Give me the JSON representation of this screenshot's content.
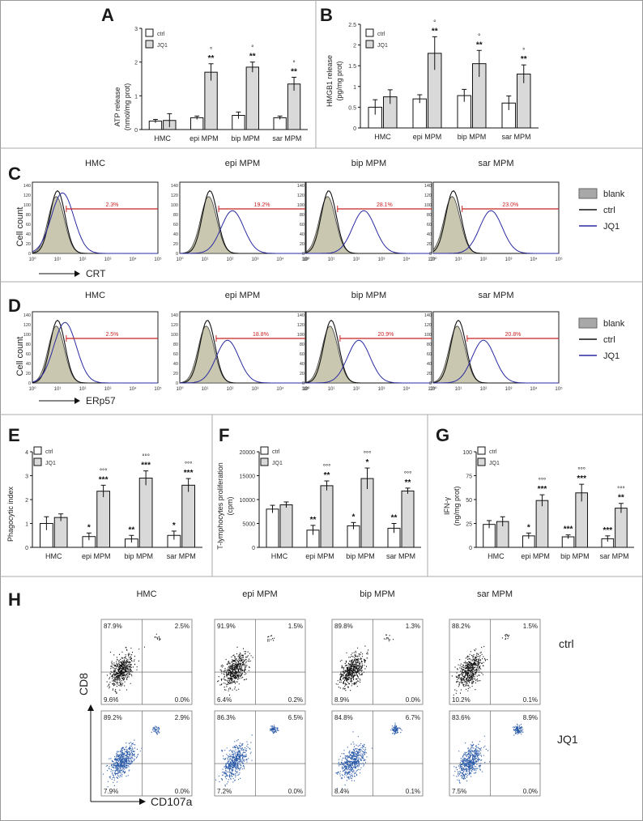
{
  "panels": {
    "A": {
      "letter": "A",
      "ylabel": "ATP release",
      "yunit": "(nmol/mg prot)"
    },
    "B": {
      "letter": "B",
      "ylabel": "HMGB1 release",
      "yunit": "(pg/mg prot)"
    },
    "C": {
      "letter": "C",
      "ylabel": "Cell count",
      "marker": "CRT"
    },
    "D": {
      "letter": "D",
      "ylabel": "Cell count",
      "marker": "ERp57"
    },
    "E": {
      "letter": "E",
      "ylabel": "Phagocytic index"
    },
    "F": {
      "letter": "F",
      "ylabel": "T-lymphocytes proliferation",
      "yunit": "(cpm)"
    },
    "G": {
      "letter": "G",
      "ylabel": "IFN-γ",
      "yunit": "(ng/mg prot)"
    },
    "H": {
      "letter": "H",
      "yaxis": "CD8",
      "xaxis": "CD107a",
      "row_labels": [
        "ctrl",
        "JQ1"
      ]
    }
  },
  "legend": {
    "ctrl": "ctrl",
    "jq1": "JQ1",
    "blank": "blank"
  },
  "categories": [
    "HMC",
    "epi MPM",
    "bip MPM",
    "sar MPM"
  ],
  "colors": {
    "ctrl_bar": "#ffffff",
    "jq1_bar": "#d9d9d9",
    "hist_fill": "#c9c7b0",
    "jq1_line": "#2a2aa0",
    "gate": "#cc2222",
    "flow_ctrl": "#111111",
    "flow_jq1": "#2a5aa8"
  },
  "chart_data": [
    {
      "id": "A",
      "type": "bar",
      "categories": [
        "HMC",
        "epi MPM",
        "bip MPM",
        "sar MPM"
      ],
      "ylim": [
        0,
        3
      ],
      "yticks": [
        0,
        1,
        2,
        3
      ],
      "series": [
        {
          "name": "ctrl",
          "values": [
            0.25,
            0.35,
            0.42,
            0.35
          ],
          "err": [
            0.05,
            0.05,
            0.1,
            0.05
          ],
          "sig": [
            "",
            "",
            "",
            ""
          ]
        },
        {
          "name": "JQ1",
          "values": [
            0.27,
            1.7,
            1.85,
            1.35
          ],
          "err": [
            0.2,
            0.25,
            0.15,
            0.2
          ],
          "sig": [
            "",
            "**",
            "**",
            "**"
          ],
          "sig2": [
            "",
            "°",
            "°",
            "°"
          ]
        }
      ]
    },
    {
      "id": "B",
      "type": "bar",
      "categories": [
        "HMC",
        "epi MPM",
        "bip MPM",
        "sar MPM"
      ],
      "ylim": [
        0,
        2.5
      ],
      "yticks": [
        0,
        0.5,
        1,
        1.5,
        2,
        2.5
      ],
      "series": [
        {
          "name": "ctrl",
          "values": [
            0.5,
            0.7,
            0.78,
            0.6
          ],
          "err": [
            0.18,
            0.1,
            0.15,
            0.17
          ],
          "sig": [
            "",
            "",
            "",
            ""
          ]
        },
        {
          "name": "JQ1",
          "values": [
            0.75,
            1.8,
            1.55,
            1.3
          ],
          "err": [
            0.17,
            0.4,
            0.32,
            0.22
          ],
          "sig": [
            "",
            "**",
            "**",
            "**"
          ],
          "sig2": [
            "",
            "°",
            "°",
            "°"
          ]
        }
      ]
    },
    {
      "id": "E",
      "type": "bar",
      "categories": [
        "HMC",
        "epi MPM",
        "bip MPM",
        "sar MPM"
      ],
      "ylim": [
        0,
        4
      ],
      "yticks": [
        0,
        1,
        2,
        3,
        4
      ],
      "series": [
        {
          "name": "ctrl",
          "values": [
            1.0,
            0.45,
            0.35,
            0.5
          ],
          "err": [
            0.28,
            0.15,
            0.15,
            0.18
          ],
          "sig": [
            "",
            "*",
            "**",
            "*"
          ]
        },
        {
          "name": "JQ1",
          "values": [
            1.25,
            2.35,
            2.9,
            2.6
          ],
          "err": [
            0.15,
            0.25,
            0.3,
            0.28
          ],
          "sig": [
            "",
            "***",
            "***",
            "***"
          ],
          "sig2": [
            "",
            "°°°",
            "°°°",
            "°°°"
          ]
        }
      ]
    },
    {
      "id": "F",
      "type": "bar",
      "categories": [
        "HMC",
        "epi MPM",
        "bip MPM",
        "sar MPM"
      ],
      "ylim": [
        0,
        20000
      ],
      "yticks": [
        0,
        5000,
        10000,
        15000,
        20000
      ],
      "series": [
        {
          "name": "ctrl",
          "values": [
            8000,
            3600,
            4500,
            4000
          ],
          "err": [
            800,
            1000,
            700,
            1000
          ],
          "sig": [
            "",
            "**",
            "*",
            "**"
          ]
        },
        {
          "name": "JQ1",
          "values": [
            8900,
            12900,
            14400,
            11800
          ],
          "err": [
            600,
            1000,
            2200,
            600
          ],
          "sig": [
            "",
            "**",
            "*",
            "**"
          ],
          "sig2": [
            "",
            "°°°",
            "°°°",
            "°°°"
          ]
        }
      ]
    },
    {
      "id": "G",
      "type": "bar",
      "categories": [
        "HMC",
        "epi MPM",
        "bip MPM",
        "sar MPM"
      ],
      "ylim": [
        0,
        100
      ],
      "yticks": [
        0,
        25,
        50,
        75,
        100
      ],
      "series": [
        {
          "name": "ctrl",
          "values": [
            24,
            12,
            11,
            9
          ],
          "err": [
            4,
            3,
            2,
            3
          ],
          "sig": [
            "",
            "*",
            "***",
            "***"
          ]
        },
        {
          "name": "JQ1",
          "values": [
            27,
            49,
            57,
            41
          ],
          "err": [
            5,
            6,
            9,
            5
          ],
          "sig": [
            "",
            "***",
            "***",
            "**"
          ],
          "sig2": [
            "",
            "°°°",
            "°°°",
            "°°°"
          ]
        }
      ]
    }
  ],
  "flow_hist": {
    "C": {
      "titles": [
        "HMC",
        "epi MPM",
        "bip MPM",
        "sar MPM"
      ],
      "percent": [
        "2.3%",
        "19.2%",
        "28.1%",
        "23.0%"
      ],
      "yticks": [
        "0",
        "20",
        "40",
        "60",
        "80",
        "100",
        "120",
        "140"
      ],
      "xticks": [
        "10⁰",
        "10¹",
        "10²",
        "10³",
        "10⁴",
        "10⁵"
      ],
      "ctrl_peak": [
        1.0,
        1.2,
        0.9,
        0.8
      ],
      "jq1_peak": [
        1.2,
        2.1,
        2.3,
        2.3
      ]
    },
    "D": {
      "titles": [
        "HMC",
        "epi MPM",
        "bip MPM",
        "sar MPM"
      ],
      "percent": [
        "2.5%",
        "18.8%",
        "20.9%",
        "20.8%"
      ],
      "yticks": [
        "0",
        "20",
        "40",
        "60",
        "80",
        "100",
        "120",
        "140"
      ],
      "xticks": [
        "10⁰",
        "10¹",
        "10²",
        "10³",
        "10⁴",
        "10⁵"
      ],
      "ctrl_peak": [
        1.0,
        1.1,
        1.0,
        1.0
      ],
      "jq1_peak": [
        1.3,
        1.9,
        2.1,
        2.0
      ]
    }
  },
  "flow_dot": {
    "titles": [
      "HMC",
      "epi MPM",
      "bip MPM",
      "sar MPM"
    ],
    "ctrl": [
      [
        "87.9%",
        "2.5%",
        "9.6%",
        "0.0%"
      ],
      [
        "91.9%",
        "1.5%",
        "6.4%",
        "0.2%"
      ],
      [
        "89.8%",
        "1.3%",
        "8.9%",
        "0.0%"
      ],
      [
        "88.2%",
        "1.5%",
        "10.2%",
        "0.1%"
      ]
    ],
    "jq1": [
      [
        "89.2%",
        "2.9%",
        "7.9%",
        "0.0%"
      ],
      [
        "86.3%",
        "6.5%",
        "7.2%",
        "0.0%"
      ],
      [
        "84.8%",
        "6.7%",
        "8.4%",
        "0.1%"
      ],
      [
        "83.6%",
        "8.9%",
        "7.5%",
        "0.0%"
      ]
    ]
  }
}
